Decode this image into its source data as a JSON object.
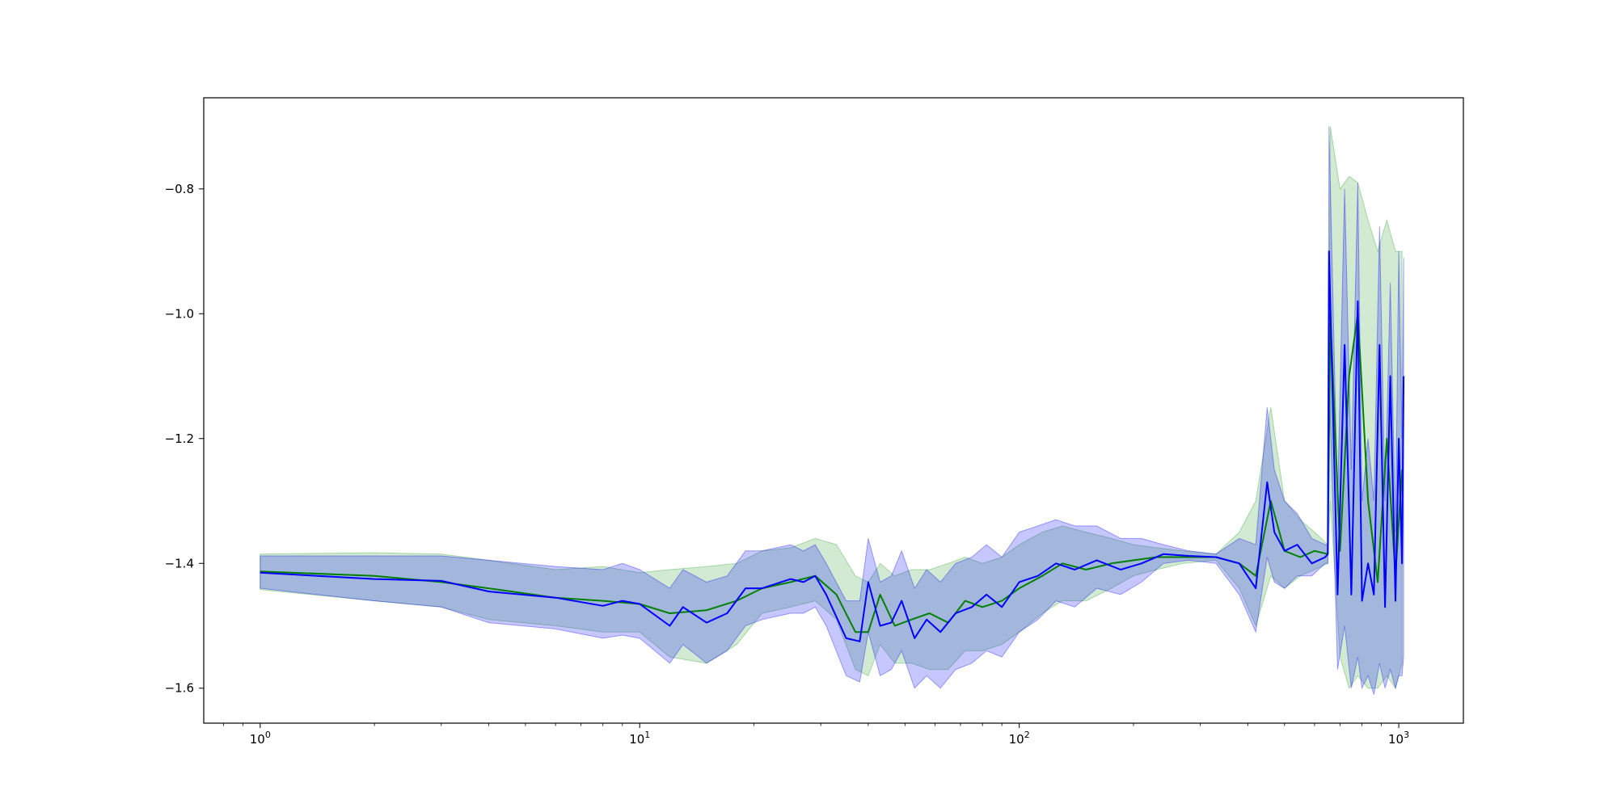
{
  "chart_data": {
    "type": "line",
    "title": "",
    "xlabel": "",
    "ylabel": "",
    "xscale": "log",
    "xlim": [
      0.71,
      1480
    ],
    "ylim": [
      -1.656,
      -0.654
    ],
    "grid": false,
    "legend": "none",
    "x_major_ticks": [
      {
        "value": 1,
        "base": "10",
        "exp": "0"
      },
      {
        "value": 10,
        "base": "10",
        "exp": "1"
      },
      {
        "value": 100,
        "base": "10",
        "exp": "2"
      },
      {
        "value": 1000,
        "base": "10",
        "exp": "3"
      }
    ],
    "y_ticks": [
      {
        "value": -0.8,
        "label": "−0.8"
      },
      {
        "value": -1.0,
        "label": "−1.0"
      },
      {
        "value": -1.2,
        "label": "−1.2"
      },
      {
        "value": -1.4,
        "label": "−1.4"
      },
      {
        "value": -1.6,
        "label": "−1.6"
      }
    ],
    "series": [
      {
        "color": "#008000",
        "band_color": "#2ca02c",
        "x": [
          1,
          2,
          3,
          4,
          6,
          8,
          10,
          12,
          15,
          18,
          21,
          25,
          29,
          33,
          37,
          40,
          43,
          47,
          52,
          58,
          65,
          72,
          80,
          90,
          100,
          115,
          130,
          150,
          175,
          200,
          230,
          270,
          330,
          380,
          420,
          460,
          500,
          550,
          600,
          650,
          660,
          700,
          740,
          780,
          830,
          880,
          930,
          980,
          1020
        ],
        "values": [
          -1.413,
          -1.42,
          -1.43,
          -1.44,
          -1.455,
          -1.46,
          -1.465,
          -1.48,
          -1.475,
          -1.46,
          -1.44,
          -1.43,
          -1.42,
          -1.45,
          -1.51,
          -1.51,
          -1.45,
          -1.5,
          -1.49,
          -1.48,
          -1.495,
          -1.46,
          -1.47,
          -1.46,
          -1.44,
          -1.42,
          -1.4,
          -1.41,
          -1.4,
          -1.395,
          -1.39,
          -1.39,
          -1.39,
          -1.4,
          -1.42,
          -1.3,
          -1.38,
          -1.39,
          -1.38,
          -1.385,
          -1.0,
          -1.38,
          -1.1,
          -1.0,
          -1.3,
          -1.43,
          -1.2,
          -1.42,
          -1.25
        ],
        "lower": [
          -1.442,
          -1.46,
          -1.47,
          -1.49,
          -1.5,
          -1.51,
          -1.51,
          -1.55,
          -1.56,
          -1.53,
          -1.48,
          -1.47,
          -1.46,
          -1.49,
          -1.57,
          -1.58,
          -1.53,
          -1.56,
          -1.56,
          -1.57,
          -1.57,
          -1.54,
          -1.54,
          -1.53,
          -1.51,
          -1.48,
          -1.46,
          -1.46,
          -1.44,
          -1.42,
          -1.41,
          -1.4,
          -1.395,
          -1.44,
          -1.5,
          -1.42,
          -1.44,
          -1.42,
          -1.41,
          -1.4,
          -1.3,
          -1.55,
          -1.6,
          -1.58,
          -1.6,
          -1.6,
          -1.58,
          -1.6,
          -1.56
        ],
        "upper": [
          -1.385,
          -1.383,
          -1.385,
          -1.395,
          -1.41,
          -1.405,
          -1.415,
          -1.41,
          -1.405,
          -1.4,
          -1.38,
          -1.375,
          -1.36,
          -1.37,
          -1.42,
          -1.43,
          -1.4,
          -1.42,
          -1.41,
          -1.41,
          -1.4,
          -1.39,
          -1.4,
          -1.39,
          -1.37,
          -1.35,
          -1.34,
          -1.35,
          -1.36,
          -1.37,
          -1.375,
          -1.38,
          -1.385,
          -1.35,
          -1.3,
          -1.15,
          -1.3,
          -1.33,
          -1.35,
          -1.37,
          -0.7,
          -0.8,
          -0.78,
          -0.79,
          -0.85,
          -0.9,
          -0.85,
          -0.9,
          -0.9
        ]
      },
      {
        "color": "#0000ff",
        "band_color": "#0000ff",
        "x": [
          1,
          2,
          3,
          4,
          6,
          8,
          9,
          10,
          12,
          13,
          15,
          17,
          19,
          21,
          25,
          27,
          29,
          31,
          35,
          38,
          40,
          43,
          46,
          49,
          53,
          57,
          62,
          68,
          75,
          82,
          90,
          100,
          112,
          125,
          140,
          160,
          185,
          210,
          240,
          280,
          330,
          380,
          420,
          450,
          470,
          500,
          540,
          590,
          640,
          650,
          655,
          690,
          720,
          750,
          780,
          800,
          830,
          860,
          890,
          920,
          950,
          980,
          1000,
          1020,
          1030
        ],
        "values": [
          -1.415,
          -1.425,
          -1.428,
          -1.445,
          -1.455,
          -1.468,
          -1.46,
          -1.465,
          -1.5,
          -1.47,
          -1.495,
          -1.48,
          -1.44,
          -1.44,
          -1.425,
          -1.43,
          -1.42,
          -1.45,
          -1.52,
          -1.525,
          -1.43,
          -1.5,
          -1.495,
          -1.46,
          -1.52,
          -1.49,
          -1.51,
          -1.48,
          -1.47,
          -1.45,
          -1.47,
          -1.43,
          -1.42,
          -1.4,
          -1.41,
          -1.395,
          -1.41,
          -1.4,
          -1.385,
          -1.388,
          -1.39,
          -1.4,
          -1.44,
          -1.27,
          -1.35,
          -1.38,
          -1.37,
          -1.4,
          -1.39,
          -1.385,
          -0.9,
          -1.45,
          -1.05,
          -1.45,
          -0.98,
          -1.46,
          -1.4,
          -1.45,
          -1.05,
          -1.47,
          -1.1,
          -1.46,
          -1.2,
          -1.4,
          -1.1
        ],
        "lower": [
          -1.44,
          -1.46,
          -1.47,
          -1.495,
          -1.505,
          -1.52,
          -1.515,
          -1.52,
          -1.56,
          -1.53,
          -1.56,
          -1.54,
          -1.5,
          -1.49,
          -1.48,
          -1.48,
          -1.47,
          -1.5,
          -1.58,
          -1.59,
          -1.51,
          -1.58,
          -1.57,
          -1.54,
          -1.6,
          -1.58,
          -1.6,
          -1.57,
          -1.56,
          -1.54,
          -1.55,
          -1.51,
          -1.49,
          -1.46,
          -1.47,
          -1.44,
          -1.45,
          -1.43,
          -1.4,
          -1.395,
          -1.4,
          -1.45,
          -1.51,
          -1.39,
          -1.43,
          -1.44,
          -1.42,
          -1.42,
          -1.4,
          -1.4,
          -1.1,
          -1.57,
          -1.5,
          -1.6,
          -1.55,
          -1.6,
          -1.58,
          -1.61,
          -1.56,
          -1.6,
          -1.57,
          -1.6,
          -1.58,
          -1.58,
          -1.55
        ],
        "upper": [
          -1.388,
          -1.388,
          -1.388,
          -1.395,
          -1.405,
          -1.41,
          -1.4,
          -1.41,
          -1.44,
          -1.41,
          -1.43,
          -1.42,
          -1.38,
          -1.38,
          -1.37,
          -1.38,
          -1.37,
          -1.4,
          -1.46,
          -1.46,
          -1.36,
          -1.43,
          -1.42,
          -1.38,
          -1.44,
          -1.41,
          -1.43,
          -1.4,
          -1.39,
          -1.37,
          -1.39,
          -1.35,
          -1.34,
          -1.33,
          -1.34,
          -1.34,
          -1.36,
          -1.36,
          -1.37,
          -1.38,
          -1.385,
          -1.36,
          -1.37,
          -1.15,
          -1.25,
          -1.3,
          -1.32,
          -1.36,
          -1.37,
          -1.37,
          -0.7,
          -1.3,
          -0.8,
          -1.25,
          -0.79,
          -1.3,
          -1.2,
          -1.3,
          -0.86,
          -1.3,
          -0.95,
          -1.35,
          -0.9,
          -1.2,
          -0.91
        ]
      }
    ]
  }
}
